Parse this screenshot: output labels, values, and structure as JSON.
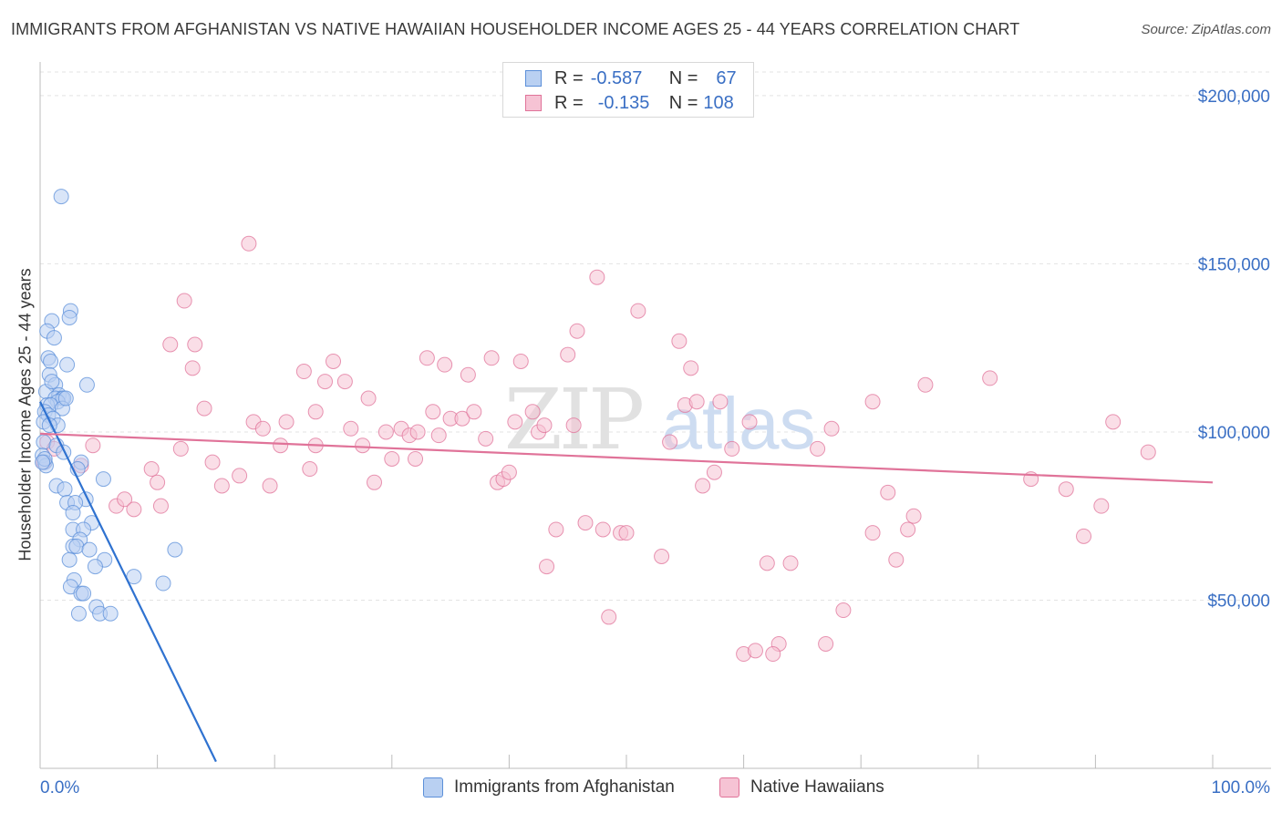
{
  "title": "IMMIGRANTS FROM AFGHANISTAN VS NATIVE HAWAIIAN HOUSEHOLDER INCOME AGES 25 - 44 YEARS CORRELATION CHART",
  "source": "Source: ZipAtlas.com",
  "watermark": {
    "part1": "ZIP",
    "part2": "atlas"
  },
  "legend": {
    "r_label": "R =",
    "n_label": "N =",
    "series": [
      {
        "name": "Immigrants from Afghanistan",
        "r": "-0.587",
        "n": "67",
        "color": "#5b8fd9",
        "fill": "#b9d0f2"
      },
      {
        "name": "Native Hawaiians",
        "r": "-0.135",
        "n": "108",
        "color": "#e07399",
        "fill": "#f6c3d4"
      }
    ]
  },
  "colors": {
    "blue_line": "#2f72d0",
    "pink_line": "#e07399",
    "axis_tick_label": "#3a6fc4",
    "grid": "#e3e3e3"
  },
  "chart_data": {
    "type": "scatter",
    "title": "IMMIGRANTS FROM AFGHANISTAN VS NATIVE HAWAIIAN HOUSEHOLDER INCOME AGES 25 - 44 YEARS CORRELATION CHART",
    "xlabel": "",
    "ylabel": "Householder Income Ages 25 - 44 years",
    "xlim": [
      0,
      100
    ],
    "ylim": [
      0,
      210000
    ],
    "x_tick_labels": [
      "0.0%",
      "100.0%"
    ],
    "y_ticks": [
      {
        "value": 50000,
        "label": "$50,000"
      },
      {
        "value": 100000,
        "label": "$100,000"
      },
      {
        "value": 150000,
        "label": "$150,000"
      },
      {
        "value": 200000,
        "label": "$200,000"
      }
    ],
    "series": [
      {
        "name": "Immigrants from Afghanistan",
        "r": -0.587,
        "n": 67,
        "trend": [
          [
            0.0,
            109000
          ],
          [
            15.0,
            2000
          ]
        ],
        "points": [
          [
            1.8,
            170000
          ],
          [
            2.6,
            136000
          ],
          [
            1.0,
            133000
          ],
          [
            2.5,
            134000
          ],
          [
            0.6,
            130000
          ],
          [
            1.2,
            128000
          ],
          [
            0.7,
            122000
          ],
          [
            0.9,
            121000
          ],
          [
            2.3,
            120000
          ],
          [
            0.8,
            117000
          ],
          [
            1.3,
            114000
          ],
          [
            4.0,
            114000
          ],
          [
            0.5,
            112000
          ],
          [
            1.6,
            111000
          ],
          [
            1.3,
            110000
          ],
          [
            1.9,
            110000
          ],
          [
            2.0,
            110000
          ],
          [
            1.5,
            109000
          ],
          [
            0.6,
            108000
          ],
          [
            0.9,
            108000
          ],
          [
            1.9,
            107000
          ],
          [
            0.4,
            106000
          ],
          [
            0.7,
            105000
          ],
          [
            1.1,
            104000
          ],
          [
            0.3,
            103000
          ],
          [
            1.5,
            102000
          ],
          [
            0.3,
            97000
          ],
          [
            1.4,
            96000
          ],
          [
            2.0,
            94000
          ],
          [
            0.2,
            93000
          ],
          [
            0.4,
            91000
          ],
          [
            3.5,
            91000
          ],
          [
            0.5,
            90000
          ],
          [
            3.2,
            89000
          ],
          [
            5.4,
            86000
          ],
          [
            1.4,
            84000
          ],
          [
            2.1,
            83000
          ],
          [
            3.9,
            80000
          ],
          [
            2.3,
            79000
          ],
          [
            3.0,
            79000
          ],
          [
            2.8,
            76000
          ],
          [
            4.4,
            73000
          ],
          [
            2.8,
            71000
          ],
          [
            3.7,
            71000
          ],
          [
            3.4,
            68000
          ],
          [
            2.8,
            66000
          ],
          [
            3.1,
            66000
          ],
          [
            4.2,
            65000
          ],
          [
            11.5,
            65000
          ],
          [
            2.5,
            62000
          ],
          [
            5.5,
            62000
          ],
          [
            4.7,
            60000
          ],
          [
            8.0,
            57000
          ],
          [
            2.9,
            56000
          ],
          [
            2.6,
            54000
          ],
          [
            10.5,
            55000
          ],
          [
            3.5,
            52000
          ],
          [
            3.7,
            52000
          ],
          [
            4.8,
            48000
          ],
          [
            3.3,
            46000
          ],
          [
            5.1,
            46000
          ],
          [
            6.0,
            46000
          ],
          [
            0.4,
            92000
          ],
          [
            0.2,
            91000
          ],
          [
            1.0,
            115000
          ],
          [
            2.2,
            110000
          ],
          [
            0.8,
            102000
          ]
        ]
      },
      {
        "name": "Native Hawaiians",
        "r": -0.135,
        "n": 108,
        "trend": [
          [
            0.0,
            99500
          ],
          [
            100.0,
            85000
          ]
        ],
        "points": [
          [
            0.3,
            91000
          ],
          [
            0.6,
            97000
          ],
          [
            1.2,
            95000
          ],
          [
            3.5,
            90000
          ],
          [
            4.5,
            96000
          ],
          [
            6.5,
            78000
          ],
          [
            7.2,
            80000
          ],
          [
            8.0,
            77000
          ],
          [
            9.5,
            89000
          ],
          [
            10.0,
            85000
          ],
          [
            10.3,
            78000
          ],
          [
            11.1,
            126000
          ],
          [
            12.0,
            95000
          ],
          [
            12.3,
            139000
          ],
          [
            13.2,
            126000
          ],
          [
            13.0,
            119000
          ],
          [
            14.0,
            107000
          ],
          [
            15.5,
            84000
          ],
          [
            14.7,
            91000
          ],
          [
            17.8,
            156000
          ],
          [
            17.0,
            87000
          ],
          [
            18.2,
            103000
          ],
          [
            19.0,
            101000
          ],
          [
            19.6,
            84000
          ],
          [
            20.5,
            96000
          ],
          [
            21.0,
            103000
          ],
          [
            22.5,
            118000
          ],
          [
            23.0,
            89000
          ],
          [
            23.5,
            106000
          ],
          [
            23.5,
            96000
          ],
          [
            24.3,
            115000
          ],
          [
            25.0,
            121000
          ],
          [
            26.0,
            115000
          ],
          [
            26.5,
            101000
          ],
          [
            27.5,
            96000
          ],
          [
            28.0,
            110000
          ],
          [
            28.5,
            85000
          ],
          [
            29.5,
            100000
          ],
          [
            30.0,
            92000
          ],
          [
            30.8,
            101000
          ],
          [
            31.5,
            99000
          ],
          [
            32.0,
            92000
          ],
          [
            32.2,
            100000
          ],
          [
            33.0,
            122000
          ],
          [
            33.5,
            106000
          ],
          [
            34.0,
            99000
          ],
          [
            34.5,
            120000
          ],
          [
            35.0,
            104000
          ],
          [
            36.0,
            104000
          ],
          [
            36.5,
            117000
          ],
          [
            37.0,
            106000
          ],
          [
            38.0,
            98000
          ],
          [
            38.5,
            122000
          ],
          [
            39.0,
            85000
          ],
          [
            39.5,
            86000
          ],
          [
            40.0,
            88000
          ],
          [
            40.5,
            103000
          ],
          [
            41.0,
            121000
          ],
          [
            42.0,
            106000
          ],
          [
            42.5,
            100000
          ],
          [
            43.0,
            102000
          ],
          [
            43.2,
            60000
          ],
          [
            44.0,
            71000
          ],
          [
            45.0,
            123000
          ],
          [
            45.5,
            102000
          ],
          [
            45.8,
            130000
          ],
          [
            46.5,
            73000
          ],
          [
            47.5,
            146000
          ],
          [
            48.5,
            45000
          ],
          [
            49.5,
            70000
          ],
          [
            50.0,
            70000
          ],
          [
            51.0,
            136000
          ],
          [
            53.0,
            63000
          ],
          [
            53.7,
            97000
          ],
          [
            54.5,
            127000
          ],
          [
            55.0,
            108000
          ],
          [
            55.5,
            119000
          ],
          [
            56.5,
            84000
          ],
          [
            57.5,
            88000
          ],
          [
            58.0,
            109000
          ],
          [
            59.0,
            95000
          ],
          [
            60.5,
            103000
          ],
          [
            62.0,
            61000
          ],
          [
            63.0,
            37000
          ],
          [
            64.0,
            61000
          ],
          [
            66.3,
            95000
          ],
          [
            67.5,
            101000
          ],
          [
            68.5,
            47000
          ],
          [
            71.0,
            70000
          ],
          [
            72.3,
            82000
          ],
          [
            74.0,
            71000
          ],
          [
            74.5,
            75000
          ],
          [
            75.5,
            114000
          ],
          [
            81.0,
            116000
          ],
          [
            84.5,
            86000
          ],
          [
            87.5,
            83000
          ],
          [
            89.0,
            69000
          ],
          [
            90.5,
            78000
          ],
          [
            91.5,
            103000
          ],
          [
            94.5,
            94000
          ],
          [
            60.0,
            34000
          ],
          [
            67.0,
            37000
          ],
          [
            71.0,
            109000
          ],
          [
            73.0,
            62000
          ],
          [
            61.0,
            35000
          ],
          [
            62.5,
            34000
          ],
          [
            56.0,
            109000
          ],
          [
            48.0,
            71000
          ]
        ]
      }
    ]
  },
  "axes": {
    "y_title": "Householder Income Ages 25 - 44 years",
    "x_min_label": "0.0%",
    "x_max_label": "100.0%"
  }
}
